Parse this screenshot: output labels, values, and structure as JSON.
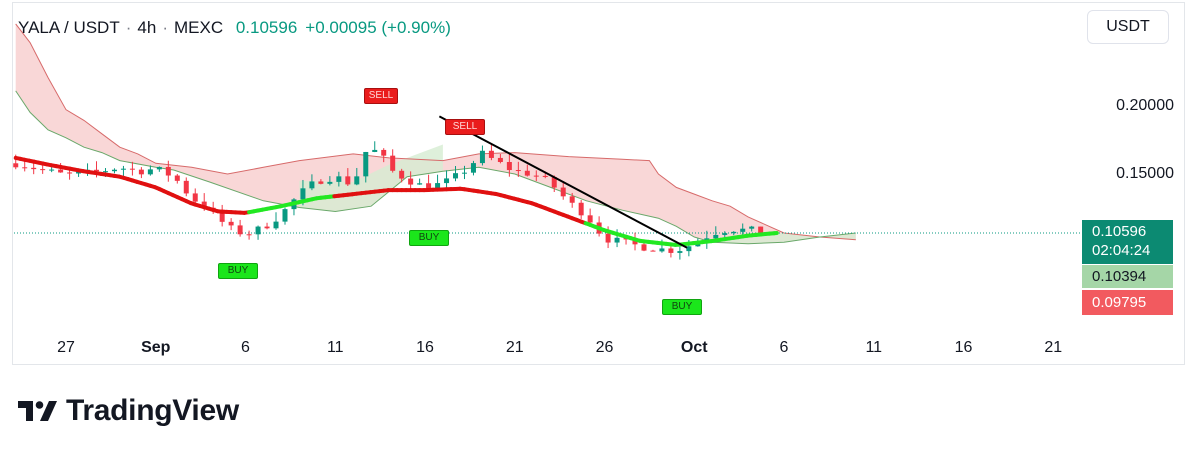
{
  "header": {
    "symbol": "YALA / USDT",
    "interval": "4h",
    "exchange": "MEXC",
    "price": "0.10596",
    "change": "+0.00095 (+0.90%)",
    "separator": "·"
  },
  "quote_currency_button": "USDT",
  "price_badges": {
    "last_price": "0.10596",
    "countdown": "02:04:24",
    "level_2": "0.10394",
    "level_3": "0.09795"
  },
  "signals": [
    {
      "label": "SELL",
      "kind": "sell"
    },
    {
      "label": "SELL",
      "kind": "sell"
    },
    {
      "label": "BUY",
      "kind": "buy"
    },
    {
      "label": "BUY",
      "kind": "buy"
    },
    {
      "label": "BUY",
      "kind": "buy"
    }
  ],
  "branding": {
    "logo_text": "TradingView"
  },
  "colors": {
    "up": "#089981",
    "down": "#f23645",
    "ma_up": "#22e822",
    "ma_down": "#e01010",
    "cloud_bear": "#f7c6c6",
    "cloud_bull": "#d6ecd2"
  },
  "chart_data": {
    "type": "candlestick",
    "title": "",
    "y_ticks": [
      "0.20000",
      "0.15000"
    ],
    "x_ticks": [
      {
        "label": "27",
        "day": 27,
        "bold": false
      },
      {
        "label": "Sep",
        "day": 32,
        "bold": true
      },
      {
        "label": "6",
        "day": 37,
        "bold": false
      },
      {
        "label": "11",
        "day": 42,
        "bold": false
      },
      {
        "label": "16",
        "day": 47,
        "bold": false
      },
      {
        "label": "21",
        "day": 52,
        "bold": false
      },
      {
        "label": "26",
        "day": 57,
        "bold": false
      },
      {
        "label": "Oct",
        "day": 62,
        "bold": true
      },
      {
        "label": "6",
        "day": 67,
        "bold": false
      },
      {
        "label": "11",
        "day": 72,
        "bold": false
      },
      {
        "label": "16",
        "day": 77,
        "bold": false
      },
      {
        "label": "21",
        "day": 82,
        "bold": false
      }
    ],
    "price_anchors": [
      {
        "day": 24.2,
        "price": 0.158
      },
      {
        "day": 26,
        "price": 0.152
      },
      {
        "day": 27,
        "price": 0.149
      },
      {
        "day": 28.5,
        "price": 0.151
      },
      {
        "day": 30,
        "price": 0.155
      },
      {
        "day": 31,
        "price": 0.152
      },
      {
        "day": 32,
        "price": 0.154
      },
      {
        "day": 33,
        "price": 0.148
      },
      {
        "day": 34,
        "price": 0.132
      },
      {
        "day": 35,
        "price": 0.124
      },
      {
        "day": 36,
        "price": 0.11
      },
      {
        "day": 37,
        "price": 0.105
      },
      {
        "day": 38,
        "price": 0.11
      },
      {
        "day": 39,
        "price": 0.12
      },
      {
        "day": 40,
        "price": 0.135
      },
      {
        "day": 41,
        "price": 0.145
      },
      {
        "day": 42,
        "price": 0.148
      },
      {
        "day": 43,
        "price": 0.142
      },
      {
        "day": 43.8,
        "price": 0.17
      },
      {
        "day": 44.5,
        "price": 0.165
      },
      {
        "day": 45.2,
        "price": 0.152
      },
      {
        "day": 46,
        "price": 0.146
      },
      {
        "day": 47,
        "price": 0.14
      },
      {
        "day": 48,
        "price": 0.143
      },
      {
        "day": 49,
        "price": 0.15
      },
      {
        "day": 50.2,
        "price": 0.165
      },
      {
        "day": 51,
        "price": 0.159
      },
      {
        "day": 52,
        "price": 0.152
      },
      {
        "day": 53,
        "price": 0.15
      },
      {
        "day": 54,
        "price": 0.143
      },
      {
        "day": 55,
        "price": 0.129
      },
      {
        "day": 56,
        "price": 0.119
      },
      {
        "day": 57,
        "price": 0.102
      },
      {
        "day": 58,
        "price": 0.099
      },
      {
        "day": 59,
        "price": 0.096
      },
      {
        "day": 60,
        "price": 0.094
      },
      {
        "day": 61,
        "price": 0.093
      },
      {
        "day": 62,
        "price": 0.098
      },
      {
        "day": 63,
        "price": 0.106
      },
      {
        "day": 64,
        "price": 0.109
      },
      {
        "day": 65,
        "price": 0.108
      },
      {
        "day": 66,
        "price": 0.107
      },
      {
        "day": 66.6,
        "price": 0.106
      }
    ],
    "cloud_upper": [
      {
        "day": 24.2,
        "price": 0.262
      },
      {
        "day": 25,
        "price": 0.248
      },
      {
        "day": 26,
        "price": 0.222
      },
      {
        "day": 27,
        "price": 0.198
      },
      {
        "day": 28,
        "price": 0.19
      },
      {
        "day": 29,
        "price": 0.18
      },
      {
        "day": 30,
        "price": 0.17
      },
      {
        "day": 31,
        "price": 0.165
      },
      {
        "day": 32,
        "price": 0.158
      },
      {
        "day": 34,
        "price": 0.155
      },
      {
        "day": 36,
        "price": 0.15
      },
      {
        "day": 38,
        "price": 0.155
      },
      {
        "day": 40,
        "price": 0.16
      },
      {
        "day": 43,
        "price": 0.165
      },
      {
        "day": 45,
        "price": 0.162
      },
      {
        "day": 48,
        "price": 0.16
      },
      {
        "day": 50,
        "price": 0.165
      },
      {
        "day": 52,
        "price": 0.166
      },
      {
        "day": 55,
        "price": 0.163
      },
      {
        "day": 58,
        "price": 0.161
      },
      {
        "day": 59.5,
        "price": 0.16
      },
      {
        "day": 60,
        "price": 0.15
      },
      {
        "day": 61,
        "price": 0.14
      },
      {
        "day": 62,
        "price": 0.135
      },
      {
        "day": 63,
        "price": 0.13
      },
      {
        "day": 64,
        "price": 0.126
      },
      {
        "day": 65,
        "price": 0.118
      },
      {
        "day": 66,
        "price": 0.112
      },
      {
        "day": 67,
        "price": 0.106
      },
      {
        "day": 69,
        "price": 0.103
      },
      {
        "day": 71,
        "price": 0.101
      }
    ],
    "cloud_lower": [
      {
        "day": 24.2,
        "price": 0.212
      },
      {
        "day": 25,
        "price": 0.196
      },
      {
        "day": 26,
        "price": 0.183
      },
      {
        "day": 27,
        "price": 0.177
      },
      {
        "day": 28,
        "price": 0.17
      },
      {
        "day": 29,
        "price": 0.166
      },
      {
        "day": 30,
        "price": 0.16
      },
      {
        "day": 32,
        "price": 0.155
      },
      {
        "day": 33,
        "price": 0.153
      },
      {
        "day": 35,
        "price": 0.144
      },
      {
        "day": 38,
        "price": 0.13
      },
      {
        "day": 40,
        "price": 0.125
      },
      {
        "day": 42,
        "price": 0.122
      },
      {
        "day": 44,
        "price": 0.126
      },
      {
        "day": 46,
        "price": 0.148
      },
      {
        "day": 48,
        "price": 0.152
      },
      {
        "day": 50,
        "price": 0.155
      },
      {
        "day": 52,
        "price": 0.15
      },
      {
        "day": 54,
        "price": 0.14
      },
      {
        "day": 56,
        "price": 0.13
      },
      {
        "day": 58,
        "price": 0.123
      },
      {
        "day": 60,
        "price": 0.117
      },
      {
        "day": 61,
        "price": 0.111
      },
      {
        "day": 62,
        "price": 0.103
      },
      {
        "day": 63,
        "price": 0.099
      },
      {
        "day": 65,
        "price": 0.098
      },
      {
        "day": 67,
        "price": 0.099
      },
      {
        "day": 69,
        "price": 0.103
      },
      {
        "day": 71,
        "price": 0.106
      }
    ],
    "moving_average": [
      {
        "day": 24.2,
        "price": 0.162
      },
      {
        "day": 26,
        "price": 0.157
      },
      {
        "day": 28,
        "price": 0.152
      },
      {
        "day": 30,
        "price": 0.148
      },
      {
        "day": 32,
        "price": 0.14
      },
      {
        "day": 34,
        "price": 0.128
      },
      {
        "day": 35.5,
        "price": 0.122
      },
      {
        "day": 37,
        "price": 0.121
      },
      {
        "day": 39,
        "price": 0.126
      },
      {
        "day": 41,
        "price": 0.132
      },
      {
        "day": 43,
        "price": 0.135
      },
      {
        "day": 45,
        "price": 0.138
      },
      {
        "day": 47,
        "price": 0.138
      },
      {
        "day": 49,
        "price": 0.139
      },
      {
        "day": 51,
        "price": 0.135
      },
      {
        "day": 53,
        "price": 0.128
      },
      {
        "day": 55,
        "price": 0.118
      },
      {
        "day": 57,
        "price": 0.108
      },
      {
        "day": 59,
        "price": 0.1
      },
      {
        "day": 61,
        "price": 0.097
      },
      {
        "day": 63,
        "price": 0.1
      },
      {
        "day": 65,
        "price": 0.104
      },
      {
        "day": 66.6,
        "price": 0.106
      }
    ],
    "ma_green_ranges": [
      [
        37.0,
        41.8
      ],
      [
        55.9,
        62.0
      ]
    ],
    "trendline": [
      {
        "day": 47.8,
        "price": 0.193
      },
      {
        "day": 61.6,
        "price": 0.095
      }
    ],
    "last_price_line": 0.10596
  }
}
